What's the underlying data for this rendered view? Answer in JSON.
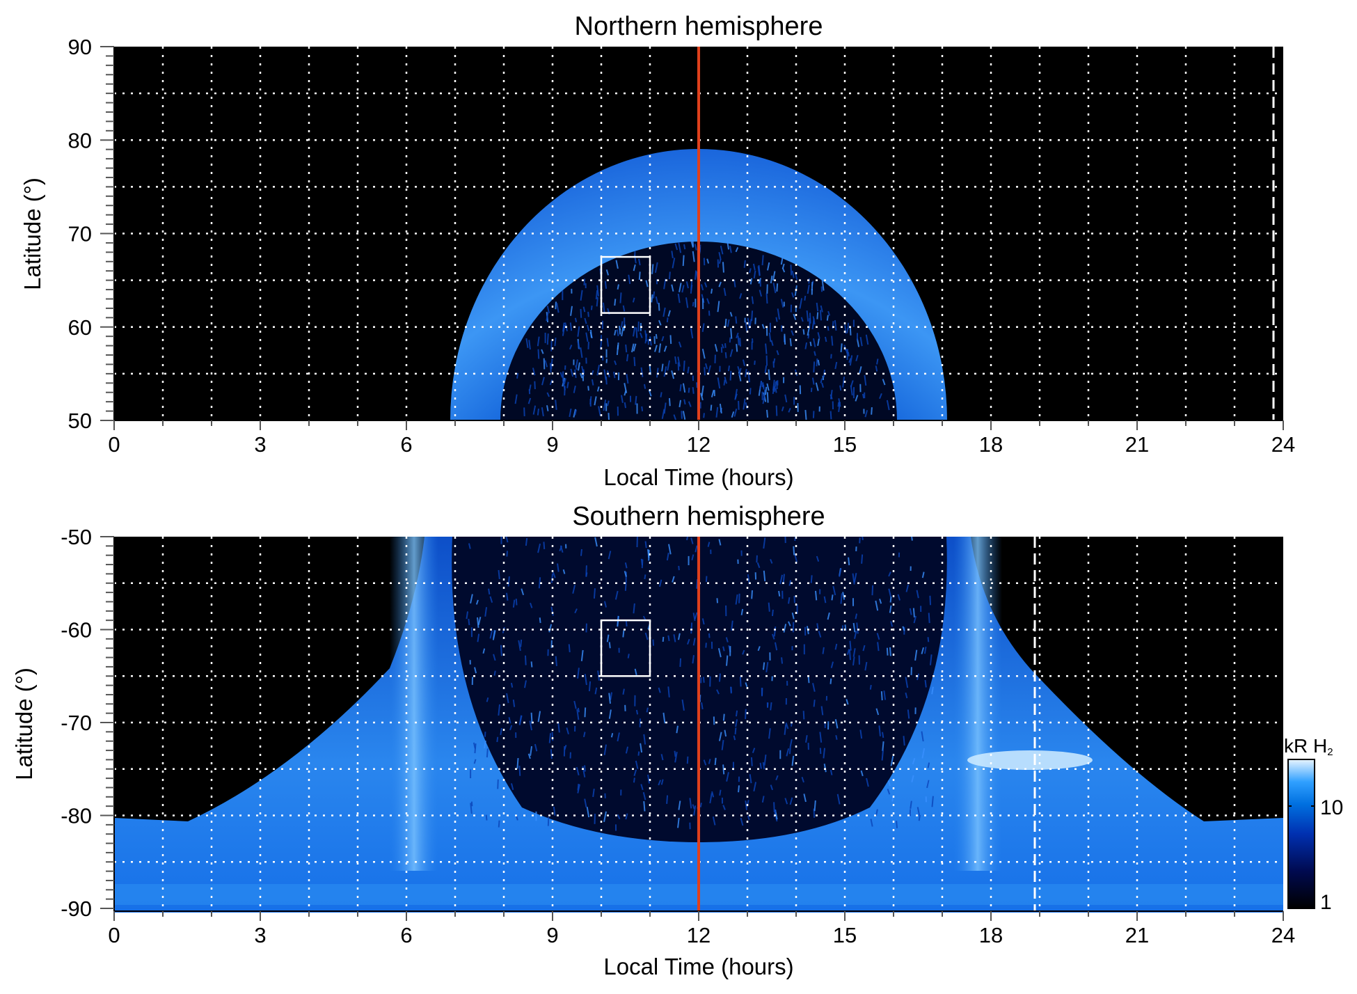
{
  "chart_data": [
    {
      "type": "heatmap",
      "title": "Northern hemisphere",
      "xlabel": "Local Time (hours)",
      "ylabel": "Latitude (°)",
      "xlim": [
        0,
        24
      ],
      "ylim": [
        50,
        90
      ],
      "xticks": [
        "0",
        "3",
        "6",
        "9",
        "12",
        "15",
        "18",
        "21",
        "24"
      ],
      "yticks": [
        "50",
        "60",
        "70",
        "80",
        "90"
      ],
      "grid": true,
      "red_line_lt": 12,
      "dashed_line_lt": 23.8,
      "box": {
        "lt": [
          10,
          11
        ],
        "lat": [
          61.5,
          67.5
        ]
      },
      "aurora_oval": {
        "lt_range_at_50": [
          7.0,
          17.2
        ],
        "poleward_edge_lat_at_noon": 79,
        "inner_edge_lat_at_noon": 69
      }
    },
    {
      "type": "heatmap",
      "title": "Southern hemisphere",
      "xlabel": "Local Time (hours)",
      "ylabel": "Latitude (°)",
      "xlim": [
        0,
        24
      ],
      "ylim": [
        -90,
        -50
      ],
      "xticks": [
        "0",
        "3",
        "6",
        "9",
        "12",
        "15",
        "18",
        "21",
        "24"
      ],
      "yticks": [
        "-90",
        "-80",
        "-70",
        "-60",
        "-50"
      ],
      "grid": true,
      "red_line_lt": 12,
      "dashed_line_lt": 18.9,
      "box": {
        "lt": [
          10,
          11
        ],
        "lat": [
          -65,
          -59
        ]
      },
      "bright_bands_lt": [
        6.5,
        17.7
      ]
    }
  ],
  "colorbar": {
    "label": "kR H",
    "label_subscript": "2",
    "scale": "log",
    "ticks": [
      "1",
      "10"
    ],
    "range": [
      1,
      30
    ],
    "colors": [
      "#000000",
      "#000a50",
      "#0030b0",
      "#0070e0",
      "#30a0ff",
      "#c0e4ff"
    ]
  }
}
